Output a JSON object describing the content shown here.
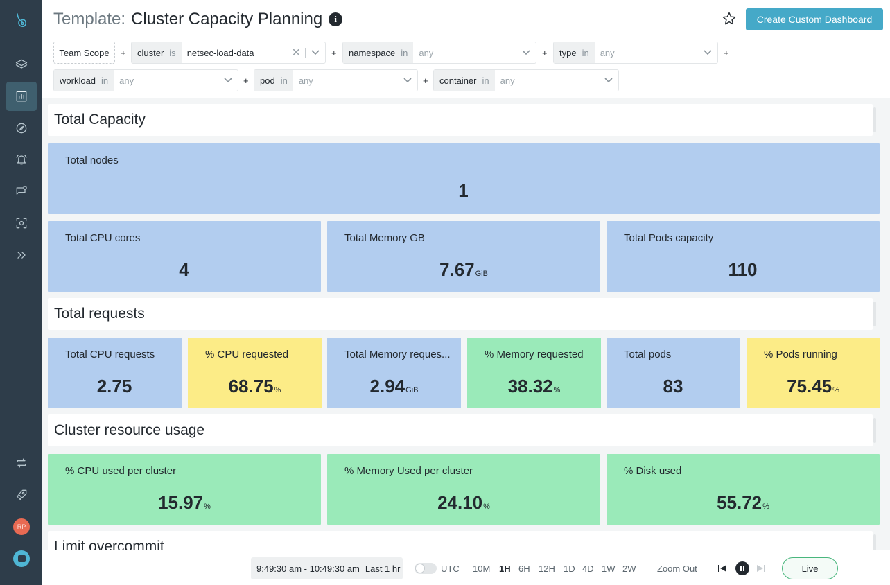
{
  "sidebar": {
    "items": [
      {
        "icon": "logo-icon"
      },
      {
        "icon": "layers-icon"
      },
      {
        "icon": "dashboard-icon",
        "active": true
      },
      {
        "icon": "compass-icon"
      },
      {
        "icon": "alert-bell-icon"
      },
      {
        "icon": "events-icon"
      },
      {
        "icon": "capture-icon"
      },
      {
        "icon": "expand-icon"
      },
      {
        "icon": "integrations-icon"
      },
      {
        "icon": "rocket-icon"
      }
    ],
    "avatar_initials": "RP"
  },
  "header": {
    "title_prefix": "Template:",
    "title": "Cluster Capacity Planning",
    "info_glyph": "i",
    "create_button": "Create Custom Dashboard"
  },
  "filters": {
    "team_scope": "Team Scope",
    "plus": "+",
    "items": [
      {
        "label": "cluster",
        "op": "is",
        "value": "netsec-load-data"
      },
      {
        "label": "namespace",
        "op": "in",
        "value": "any"
      },
      {
        "label": "type",
        "op": "in",
        "value": "any"
      },
      {
        "label": "workload",
        "op": "in",
        "value": "any"
      },
      {
        "label": "pod",
        "op": "in",
        "value": "any"
      },
      {
        "label": "container",
        "op": "in",
        "value": "any"
      }
    ]
  },
  "sections": {
    "capacity": {
      "title": "Total Capacity",
      "tiles": [
        {
          "label": "Total nodes",
          "value": "1",
          "unit": ""
        },
        {
          "label": "Total CPU cores",
          "value": "4",
          "unit": ""
        },
        {
          "label": "Total Memory GB",
          "value": "7.67",
          "unit": "GiB"
        },
        {
          "label": "Total Pods capacity",
          "value": "110",
          "unit": ""
        }
      ]
    },
    "requests": {
      "title": "Total requests",
      "tiles": [
        {
          "label": "Total CPU requests",
          "value": "2.75",
          "unit": ""
        },
        {
          "label": "% CPU requested",
          "value": "68.75",
          "unit": "%"
        },
        {
          "label": "Total Memory reques...",
          "value": "2.94",
          "unit": "GiB"
        },
        {
          "label": "% Memory requested",
          "value": "38.32",
          "unit": "%"
        },
        {
          "label": "Total pods",
          "value": "83",
          "unit": ""
        },
        {
          "label": "% Pods running",
          "value": "75.45",
          "unit": "%"
        }
      ]
    },
    "usage": {
      "title": "Cluster resource usage",
      "tiles": [
        {
          "label": "% CPU used per cluster",
          "value": "15.97",
          "unit": "%"
        },
        {
          "label": "% Memory Used per cluster",
          "value": "24.10",
          "unit": "%"
        },
        {
          "label": "% Disk used",
          "value": "55.72",
          "unit": "%"
        }
      ]
    },
    "overcommit": {
      "title": "Limit overcommit"
    }
  },
  "colors": {
    "blue_tile": "#b2cdef",
    "yellow_tile": "#fcec87",
    "green_tile": "#9aeab9",
    "accent": "#45a9c8",
    "sidebar": "#2e3d4a"
  },
  "footer": {
    "time_range": "9:49:30 am - 10:49:30 am",
    "last_label": "Last 1 hr",
    "utc_label": "UTC",
    "ranges": [
      "10M",
      "1H",
      "6H",
      "12H",
      "1D",
      "4D",
      "1W",
      "2W"
    ],
    "selected_range": "1H",
    "zoom_out": "Zoom Out",
    "live": "Live"
  }
}
